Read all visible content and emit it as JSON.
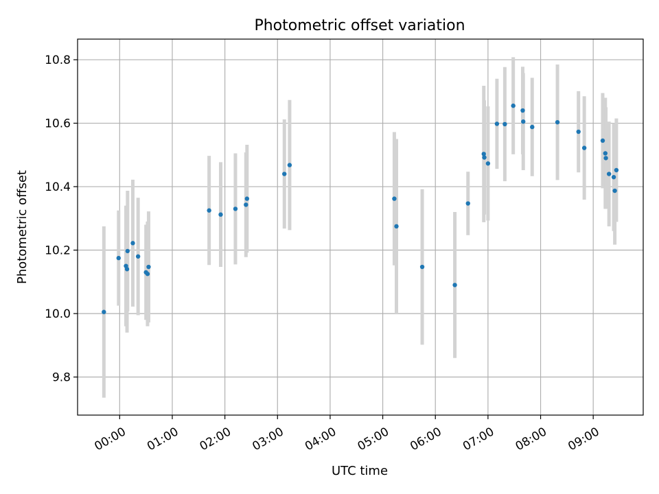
{
  "chart_data": {
    "type": "scatter",
    "title": "Photometric offset variation",
    "xlabel": "UTC time",
    "ylabel": "Photometric offset",
    "x_unit": "hours_utc",
    "xlim": [
      -0.8,
      9.95
    ],
    "ylim": [
      9.68,
      10.865
    ],
    "x_ticks": [
      {
        "value": 0,
        "label": "00:00"
      },
      {
        "value": 1,
        "label": "01:00"
      },
      {
        "value": 2,
        "label": "02:00"
      },
      {
        "value": 3,
        "label": "03:00"
      },
      {
        "value": 4,
        "label": "04:00"
      },
      {
        "value": 5,
        "label": "05:00"
      },
      {
        "value": 6,
        "label": "06:00"
      },
      {
        "value": 7,
        "label": "07:00"
      },
      {
        "value": 8,
        "label": "08:00"
      },
      {
        "value": 9,
        "label": "09:00"
      }
    ],
    "y_ticks": [
      {
        "value": 9.8,
        "label": "9.8"
      },
      {
        "value": 10.0,
        "label": "10.0"
      },
      {
        "value": 10.2,
        "label": "10.2"
      },
      {
        "value": 10.4,
        "label": "10.4"
      },
      {
        "value": 10.6,
        "label": "10.6"
      },
      {
        "value": 10.8,
        "label": "10.8"
      }
    ],
    "grid": true,
    "colors": {
      "point": "#1f77b4",
      "errorbar": "#d3d3d3",
      "grid": "#b0b0b0",
      "axis": "#000000"
    },
    "series": [
      {
        "name": "offset",
        "x": [
          -0.3,
          -0.02,
          0.12,
          0.14,
          0.15,
          0.25,
          0.35,
          0.5,
          0.53,
          0.55,
          1.7,
          1.92,
          2.2,
          2.4,
          2.42,
          3.13,
          3.23,
          5.22,
          5.26,
          5.75,
          6.37,
          6.62,
          6.92,
          6.93,
          7.0,
          7.17,
          7.32,
          7.48,
          7.66,
          7.67,
          7.84,
          8.32,
          8.72,
          8.83,
          9.18,
          9.23,
          9.24,
          9.3,
          9.39,
          9.41,
          9.44
        ],
        "y": [
          10.005,
          10.175,
          10.15,
          10.14,
          10.197,
          10.222,
          10.18,
          10.13,
          10.125,
          10.147,
          10.325,
          10.312,
          10.33,
          10.343,
          10.362,
          10.44,
          10.468,
          10.362,
          10.275,
          10.147,
          10.09,
          10.347,
          10.503,
          10.492,
          10.473,
          10.598,
          10.597,
          10.655,
          10.64,
          10.605,
          10.588,
          10.603,
          10.573,
          10.522,
          10.545,
          10.505,
          10.49,
          10.44,
          10.43,
          10.387,
          10.452
        ],
        "yerr": [
          0.27,
          0.15,
          0.19,
          0.2,
          0.19,
          0.2,
          0.185,
          0.15,
          0.165,
          0.175,
          0.172,
          0.165,
          0.175,
          0.165,
          0.17,
          0.172,
          0.205,
          0.21,
          0.275,
          0.245,
          0.23,
          0.1,
          0.215,
          0.18,
          0.18,
          0.142,
          0.18,
          0.153,
          0.138,
          0.153,
          0.155,
          0.182,
          0.128,
          0.163,
          0.15,
          0.175,
          0.16,
          0.165,
          0.17,
          0.17,
          0.163
        ]
      }
    ]
  }
}
